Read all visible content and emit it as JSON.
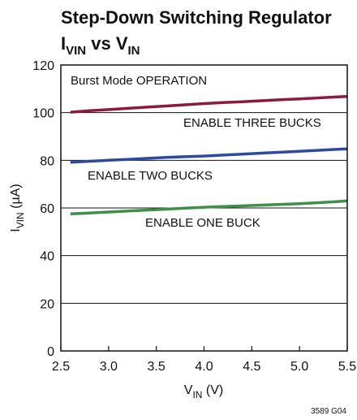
{
  "chart_data": {
    "type": "line",
    "title_line1": "Step-Down Switching Regulator",
    "title_line2": {
      "main1": "I",
      "sub1": "VIN",
      "mid": " vs V",
      "sub2": "IN"
    },
    "xlabel": {
      "main": "V",
      "sub": "IN",
      "rest": " (V)"
    },
    "ylabel": {
      "main": "I",
      "sub": "VIN",
      "rest": " (µA)"
    },
    "xlim": [
      2.5,
      5.5
    ],
    "ylim": [
      0,
      120
    ],
    "xticks": [
      "2.5",
      "3.0",
      "3.5",
      "4.0",
      "4.5",
      "5.0",
      "5.5"
    ],
    "yticks": [
      "0",
      "20",
      "40",
      "60",
      "80",
      "100",
      "120"
    ],
    "grid": true,
    "series": [
      {
        "color": "#8b1a3e",
        "x": [
          2.6,
          2.8,
          3.0,
          3.2,
          3.4,
          3.6,
          3.8,
          4.0,
          4.2,
          4.4,
          4.6,
          4.8,
          5.0,
          5.2,
          5.4,
          5.5
        ],
        "y": [
          100.2,
          100.8,
          101.3,
          101.8,
          102.3,
          102.8,
          103.3,
          103.8,
          104.2,
          104.6,
          105.0,
          105.4,
          105.8,
          106.2,
          106.6,
          106.8
        ]
      },
      {
        "color": "#2e4a9e",
        "x": [
          2.6,
          2.8,
          3.0,
          3.2,
          3.4,
          3.6,
          3.8,
          4.0,
          4.2,
          4.4,
          4.6,
          4.8,
          5.0,
          5.2,
          5.4,
          5.5
        ],
        "y": [
          79.2,
          79.6,
          80.0,
          80.4,
          80.8,
          81.2,
          81.5,
          81.8,
          82.2,
          82.6,
          83.0,
          83.4,
          83.8,
          84.2,
          84.6,
          84.8
        ]
      },
      {
        "color": "#3f8f4a",
        "x": [
          2.6,
          2.8,
          3.0,
          3.2,
          3.4,
          3.6,
          3.8,
          4.0,
          4.2,
          4.4,
          4.6,
          4.8,
          5.0,
          5.2,
          5.4,
          5.5
        ],
        "y": [
          57.5,
          57.9,
          58.3,
          58.7,
          59.1,
          59.5,
          59.9,
          60.3,
          60.6,
          60.9,
          61.2,
          61.5,
          61.8,
          62.2,
          62.7,
          63.0
        ]
      }
    ],
    "annotations": [
      {
        "id": "burst",
        "text": "Burst Mode OPERATION"
      },
      {
        "id": "three",
        "text": "ENABLE THREE BUCKS"
      },
      {
        "id": "two",
        "text": "ENABLE TWO BUCKS"
      },
      {
        "id": "one",
        "text": "ENABLE ONE BUCK"
      }
    ],
    "figure_code": "3589 G04"
  }
}
